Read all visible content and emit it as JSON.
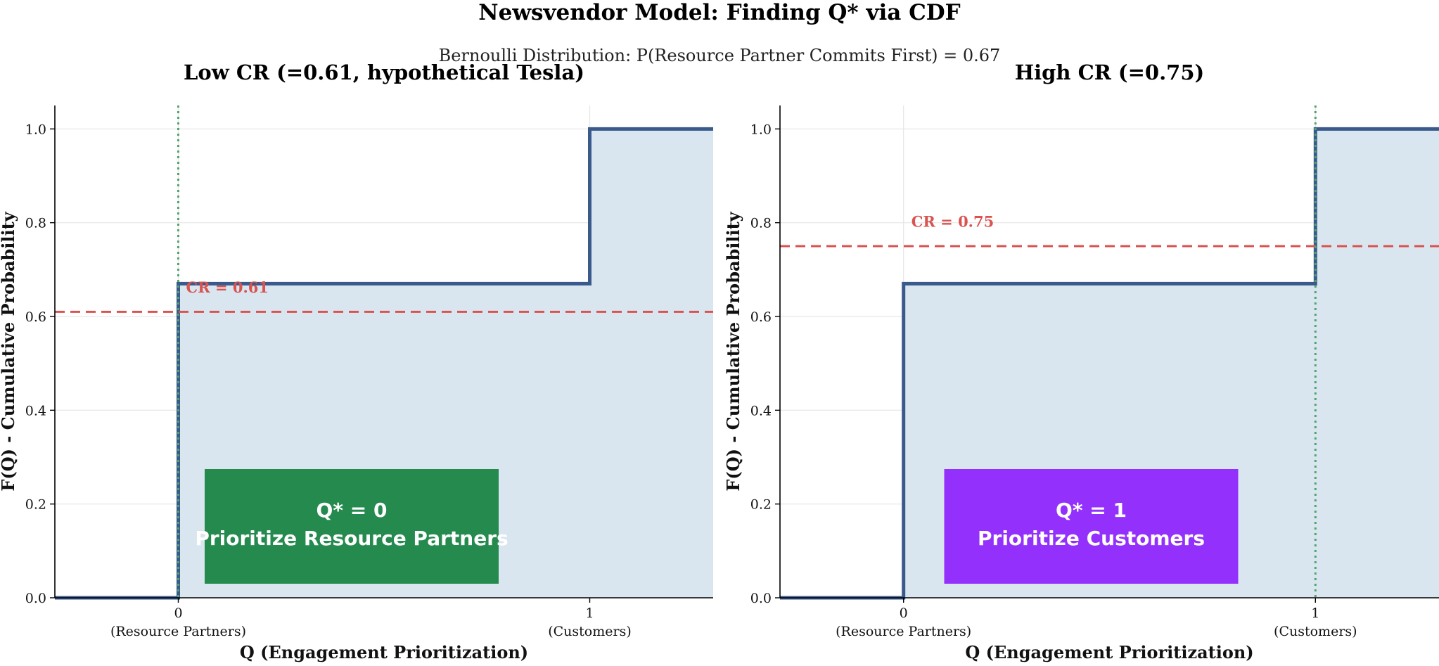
{
  "figure": {
    "title": "Newsvendor Model: Finding Q* via CDF",
    "subtitle": "Bernoulli Distribution: P(Resource Partner Commits First) = 0.67"
  },
  "colors": {
    "cdf_line": "#3a5a8c",
    "cdf_fill": "#d9e6f0",
    "cr_line": "#d9534f",
    "qstar_line": "#52a56b",
    "grid": "#e6e6e6"
  },
  "chart_data": [
    {
      "type": "line",
      "title": "Low CR (=0.61, hypothetical Tesla)",
      "xlabel": "Q (Engagement Prioritization)",
      "ylabel": "F(Q) - Cumulative Probability",
      "xlim": [
        -0.3,
        1.3
      ],
      "ylim": [
        0,
        1.05
      ],
      "xticks": [
        0,
        1
      ],
      "xtick_labels": [
        "0",
        "1"
      ],
      "xtick_sublabels": [
        "(Resource Partners)",
        "(Customers)"
      ],
      "yticks": [
        0.0,
        0.2,
        0.4,
        0.6,
        0.8,
        1.0
      ],
      "ytick_labels": [
        "0.0",
        "0.2",
        "0.4",
        "0.6",
        "0.8",
        "1.0"
      ],
      "grid": true,
      "series": [
        {
          "x": [
            -0.3,
            0,
            0,
            1,
            1,
            1.3
          ],
          "y": [
            0,
            0,
            0.67,
            0.67,
            1.0,
            1.0
          ]
        }
      ],
      "critical_ratio": 0.61,
      "cr_label": "CR = 0.61",
      "q_star": 0,
      "decision_box": {
        "line1": "Q* = 0",
        "line2": "Prioritize Resource Partners",
        "color": "#248a4e"
      }
    },
    {
      "type": "line",
      "title": "High CR (=0.75)",
      "xlabel": "Q (Engagement Prioritization)",
      "ylabel": "F(Q) - Cumulative Probability",
      "xlim": [
        -0.3,
        1.3
      ],
      "ylim": [
        0,
        1.05
      ],
      "xticks": [
        0,
        1
      ],
      "xtick_labels": [
        "0",
        "1"
      ],
      "xtick_sublabels": [
        "(Resource Partners)",
        "(Customers)"
      ],
      "yticks": [
        0.0,
        0.2,
        0.4,
        0.6,
        0.8,
        1.0
      ],
      "ytick_labels": [
        "0.0",
        "0.2",
        "0.4",
        "0.6",
        "0.8",
        "1.0"
      ],
      "grid": true,
      "series": [
        {
          "x": [
            -0.3,
            0,
            0,
            1,
            1,
            1.3
          ],
          "y": [
            0,
            0,
            0.67,
            0.67,
            1.0,
            1.0
          ]
        }
      ],
      "critical_ratio": 0.75,
      "cr_label": "CR = 0.75",
      "q_star": 1,
      "decision_box": {
        "line1": "Q* = 1",
        "line2": "Prioritize Customers",
        "color": "#9430fb"
      }
    }
  ]
}
